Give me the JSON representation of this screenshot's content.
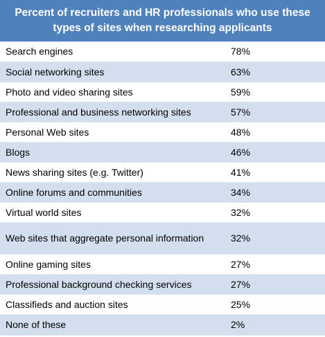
{
  "chart_data": {
    "type": "table",
    "title": "Percent of recruiters and HR professionals who use these types of sites when researching applicants",
    "rows": [
      {
        "label": "Search engines",
        "value": "78%"
      },
      {
        "label": "Social networking sites",
        "value": "63%"
      },
      {
        "label": "Photo and video sharing sites",
        "value": "59%"
      },
      {
        "label": "Professional and business networking sites",
        "value": "57%"
      },
      {
        "label": "Personal Web sites",
        "value": "48%"
      },
      {
        "label": "Blogs",
        "value": "46%"
      },
      {
        "label": "News sharing sites (e.g. Twitter)",
        "value": "41%"
      },
      {
        "label": "Online forums and communities",
        "value": "34%"
      },
      {
        "label": "Virtual world sites",
        "value": "32%"
      },
      {
        "label": "Web sites that aggregate personal information",
        "value": "32%"
      },
      {
        "label": "Online gaming sites",
        "value": "27%"
      },
      {
        "label": "Professional background checking services",
        "value": "27%"
      },
      {
        "label": "Classifieds and auction sites",
        "value": "25%"
      },
      {
        "label": "None of these",
        "value": "2%"
      }
    ],
    "colors": {
      "header": "#4f81bd",
      "band": "#d3dfee"
    }
  }
}
